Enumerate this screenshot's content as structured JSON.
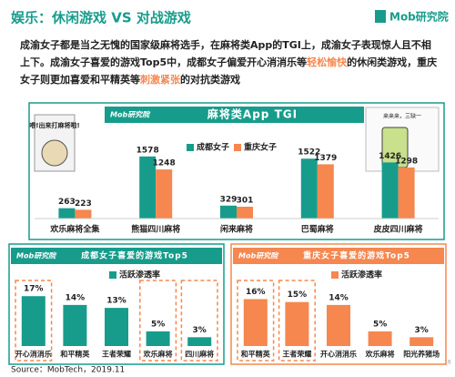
{
  "header": {
    "title": "娱乐：休闲游戏 VS 对战游戏",
    "logo": "Mob研究院"
  },
  "summary": [
    {
      "text": "成渝女子都是当之无愧的国家级麻将选手，在麻将类App的TGI上，成渝女子表现惊人且不相上下。成渝女子喜爱的游戏Top5中，成都女子偏爱开心消消乐等"
    },
    {
      "text": "轻松愉快",
      "highlight": true
    },
    {
      "text": "的休闲类游戏，重庆女子则更加喜爱和平精英等"
    },
    {
      "text": "刺激紧张",
      "highlight": true
    },
    {
      "text": "的对抗类游戏"
    }
  ],
  "stickers": {
    "left": "喂!出来打麻将啦!",
    "right": "来来来，三缺一"
  },
  "chart_data": [
    {
      "type": "bar",
      "title": "麻将类App TGI",
      "logo": "Mob研究院",
      "categories": [
        "欢乐麻将全集",
        "熊猫四川麻将",
        "闲来麻将",
        "巴蜀麻将",
        "皮皮四川麻将"
      ],
      "series": [
        {
          "name": "成都女子",
          "color": "#179c8c",
          "values": [
            263,
            1578,
            329,
            1522,
            1426
          ]
        },
        {
          "name": "重庆女子",
          "color": "#f5874f",
          "values": [
            223,
            1248,
            301,
            1379,
            1298
          ]
        }
      ],
      "ylim": [
        0,
        1800
      ],
      "frame_color": "#179c8c"
    },
    {
      "type": "bar",
      "title": "成都女子喜爱的游戏Top5",
      "logo": "Mob研究院",
      "legend": "活跃渗透率",
      "categories": [
        "开心消消乐",
        "和平精英",
        "王者荣耀",
        "欢乐麻将",
        "四川麻将"
      ],
      "values": [
        17,
        14,
        13,
        5,
        3
      ],
      "value_labels": [
        "17%",
        "14%",
        "13%",
        "5%",
        "3%"
      ],
      "highlight": [
        true,
        false,
        false,
        true,
        true
      ],
      "color": "#179c8c",
      "frame_color": "#179c8c",
      "ylim": [
        0,
        20
      ]
    },
    {
      "type": "bar",
      "title": "重庆女子喜爱的游戏Top5",
      "logo": "Mob研究院",
      "legend": "活跃渗透率",
      "categories": [
        "和平精英",
        "王者荣耀",
        "开心消消乐",
        "欢乐麻将",
        "阳光养猪场"
      ],
      "values": [
        16,
        15,
        14,
        5,
        3
      ],
      "value_labels": [
        "16%",
        "15%",
        "14%",
        "5%",
        "3%"
      ],
      "highlight": [
        true,
        true,
        false,
        false,
        false
      ],
      "color": "#f5874f",
      "frame_color": "#f5874f",
      "ylim": [
        0,
        20
      ]
    }
  ],
  "footer": {
    "source": "Source：MobTech，2019.11",
    "page": "16"
  }
}
